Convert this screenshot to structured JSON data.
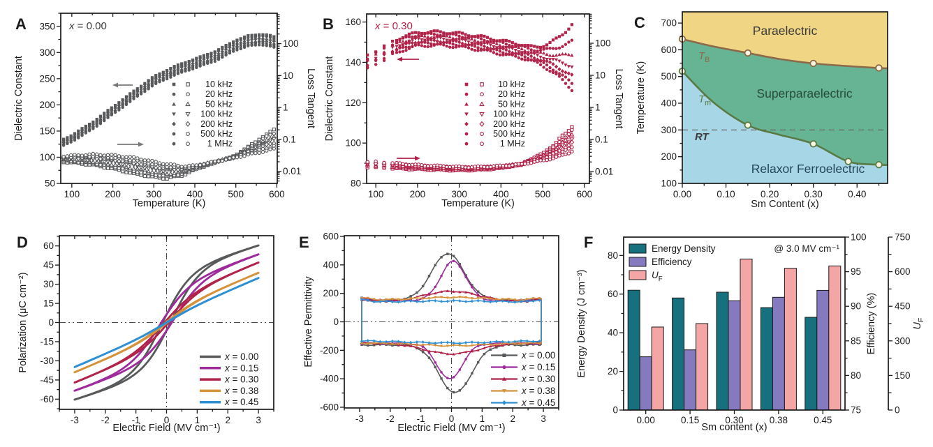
{
  "figure_title": "Dielectric, phase-diagram, polarization and energy-storage panels",
  "colors": {
    "axis": "#1a1a1a",
    "panel_a_gray": "#58595b",
    "panel_b_crimson": "#b12349",
    "purple_x015": "#9e2b9b",
    "orange_x038": "#d4923b",
    "blue_x045": "#2f8fd3",
    "bar_teal": "#16707e",
    "bar_purple": "#8579bf",
    "bar_pink": "#f4a6a6",
    "region_yellow": "#f0d585",
    "region_green": "#66b493",
    "region_blue": "#a7d6e6",
    "tb_brown": "#8c6a49",
    "tm_olive": "#5a7a45"
  },
  "chart_data": [
    {
      "id": "A",
      "type": "scatter",
      "letter": "A",
      "annotation_rich": [
        {
          "t": "x",
          "i": true
        },
        {
          "t": " = 0.00"
        }
      ],
      "color": "#58595b",
      "xlabel": "Temperature (K)",
      "ylabel_left": "Dielectric Constant",
      "ylabel_right": "Loss Tangent",
      "xlim": [
        73,
        601
      ],
      "xticks": [
        100,
        200,
        300,
        400,
        500,
        600
      ],
      "xminor": 50,
      "ylim_left": [
        50,
        375
      ],
      "yticks_left": [
        50,
        100,
        150,
        200,
        250,
        300,
        350
      ],
      "yminor_left": 25,
      "ylim_right": [
        0.0042,
        892
      ],
      "yticks_right": [
        0.01,
        0.1,
        1,
        10,
        100
      ],
      "legend": [
        "10 kHz",
        "20 kHz",
        "50 kHz",
        "100 kHz",
        "200 kHz",
        "500 kHz",
        "1 MHz"
      ],
      "symbols": [
        "square",
        "circle",
        "triangle-up",
        "triangle-down",
        "diamond",
        "circle",
        "circle"
      ],
      "dielectric_mid": {
        "T": [
          80,
          100,
          150,
          200,
          250,
          300,
          350,
          400,
          450,
          500,
          530,
          560,
          580,
          600
        ],
        "K": [
          128,
          136,
          160,
          189,
          218,
          246,
          265,
          279,
          293,
          314,
          322,
          325,
          323,
          318
        ]
      },
      "spread": {
        "low": 2.0,
        "high": 3.4
      },
      "loss_10kHz": {
        "T": [
          80,
          150,
          200,
          250,
          300,
          330,
          370,
          400,
          450,
          500,
          550,
          600
        ],
        "tan": [
          0.02,
          0.016,
          0.012,
          0.0085,
          0.0066,
          0.006,
          0.0075,
          0.011,
          0.019,
          0.03,
          0.08,
          0.215
        ]
      },
      "loss_1MHz": {
        "T": [
          80,
          150,
          200,
          250,
          300,
          330,
          370,
          400,
          450,
          500,
          550,
          600
        ],
        "tan": [
          0.03,
          0.034,
          0.032,
          0.027,
          0.02,
          0.017,
          0.0145,
          0.015,
          0.02,
          0.027,
          0.037,
          0.052
        ]
      }
    },
    {
      "id": "B",
      "type": "scatter",
      "letter": "B",
      "annotation_rich": [
        {
          "t": "x",
          "i": true
        },
        {
          "t": " = 0.30"
        }
      ],
      "color": "#b12349",
      "xlabel": "Temperature (K)",
      "ylabel_left": "Dielectric Constant",
      "ylabel_right": "Loss Tangent",
      "xlim": [
        78,
        612
      ],
      "xticks": [
        100,
        200,
        300,
        400,
        500,
        600
      ],
      "xminor": 50,
      "ylim_left": [
        80,
        164
      ],
      "yticks_left": [
        80,
        100,
        120,
        140,
        160
      ],
      "yminor_left": 10,
      "ylim_right": [
        0.0043,
        818
      ],
      "yticks_right": [
        0.01,
        0.1,
        1,
        10,
        100
      ],
      "legend": [
        "10 kHz",
        "20 kHz",
        "50 kHz",
        "100 kHz",
        "200 kHz",
        "500 kHz",
        "1 MHz"
      ],
      "symbols": [
        "square",
        "circle",
        "triangle-up",
        "triangle-down",
        "diamond",
        "circle",
        "circle"
      ],
      "dielectric_mid": {
        "T": [
          80,
          100,
          120,
          140,
          160,
          200,
          250,
          300,
          350,
          400,
          450,
          500,
          530,
          560,
          575
        ],
        "K": [
          140,
          142.5,
          144.5,
          147,
          149,
          151.5,
          151.8,
          151,
          149.5,
          147.5,
          145.5,
          142.5,
          140.5,
          138,
          136.8
        ]
      },
      "spread": {
        "low": 1.1,
        "high": 1.1
      },
      "divergence": {
        "start": 460,
        "span": 115,
        "amp": [
          20,
          12,
          6,
          1,
          -3,
          -6,
          -8
        ]
      },
      "sparse_T": [
        80,
        100,
        120,
        140
      ],
      "dense_from": 150,
      "loss_10kHz": {
        "T": [
          80,
          150,
          200,
          250,
          300,
          350,
          400,
          450,
          500,
          530,
          560,
          575
        ],
        "tan": [
          0.014,
          0.0125,
          0.012,
          0.0115,
          0.011,
          0.0115,
          0.013,
          0.017,
          0.035,
          0.07,
          0.17,
          0.3
        ]
      },
      "loss_1MHz": {
        "T": [
          80,
          150,
          200,
          250,
          300,
          350,
          400,
          450,
          500,
          530,
          560,
          575
        ],
        "tan": [
          0.021,
          0.018,
          0.016,
          0.015,
          0.014,
          0.014,
          0.015,
          0.017,
          0.022,
          0.027,
          0.037,
          0.047
        ]
      }
    },
    {
      "id": "C",
      "type": "phase-diagram",
      "letter": "C",
      "xlabel": "Sm Content (x)",
      "ylabel": "Temperature (K)",
      "xlim": [
        0,
        0.47
      ],
      "ylim": [
        100,
        742
      ],
      "xticks": [
        0,
        0.1,
        0.2,
        0.3,
        0.4
      ],
      "xminor": 0.05,
      "yticks": [
        100,
        200,
        300,
        400,
        500,
        600,
        700
      ],
      "yminor": 50,
      "regions": [
        {
          "name": "Paraelectric",
          "color": "#f0d585"
        },
        {
          "name": "Superparaelectric",
          "color": "#66b493"
        },
        {
          "name": "Relaxor Ferroelectric",
          "color": "#a7d6e6"
        }
      ],
      "TB": {
        "label_rich": [
          {
            "t": "T",
            "i": true
          },
          {
            "t": "B",
            "sub": true
          }
        ],
        "color": "#8c6a49",
        "x": [
          0,
          0.15,
          0.3,
          0.45
        ],
        "T": [
          640,
          588,
          549,
          532
        ],
        "shape_x": [
          0,
          0.07,
          0.15,
          0.22,
          0.3,
          0.38,
          0.45,
          0.47
        ],
        "shape_T": [
          640,
          613,
          588,
          566,
          549,
          539,
          532,
          531
        ]
      },
      "Tm": {
        "label_rich": [
          {
            "t": "T",
            "i": true
          },
          {
            "t": "m",
            "sub": true
          }
        ],
        "color": "#5a7a45",
        "x": [
          0,
          0.15,
          0.3,
          0.38,
          0.45
        ],
        "T": [
          520,
          318,
          248,
          182,
          170
        ],
        "shape_x": [
          0,
          0.07,
          0.15,
          0.22,
          0.3,
          0.38,
          0.45,
          0.47
        ],
        "shape_T": [
          520,
          405,
          318,
          283,
          248,
          182,
          170,
          169
        ]
      },
      "rt": {
        "T": 300,
        "label": "RT"
      },
      "marker_fill": "#fcf7e3"
    },
    {
      "id": "D",
      "type": "line",
      "letter": "D",
      "xlabel": "Electric Field (MV cm⁻¹)",
      "ylabel": "Polarization (μC cm⁻²)",
      "xlim": [
        -3.5,
        3.5
      ],
      "xticks": [
        -3,
        -2,
        -1,
        0,
        1,
        2,
        3
      ],
      "xminor": 0.5,
      "ylim": [
        -68,
        68
      ],
      "yticks": [
        -60,
        -45,
        -30,
        -15,
        0,
        15,
        30,
        45,
        60
      ],
      "yminor": 7.5,
      "series": [
        {
          "label_rich": [
            {
              "t": "x",
              "i": true
            },
            {
              "t": " = 0.00"
            }
          ],
          "color": "#58595b",
          "pmax": 60,
          "tanh_amp": 38,
          "tanh_k": 1.1,
          "linear": 7.5,
          "ec": 0.15
        },
        {
          "label_rich": [
            {
              "t": "x",
              "i": true
            },
            {
              "t": " = 0.15"
            }
          ],
          "color": "#9e2b9b",
          "pmax": 54,
          "tanh_amp": 28,
          "tanh_k": 1.05,
          "linear": 8.5,
          "ec": 0.22
        },
        {
          "label_rich": [
            {
              "t": "x",
              "i": true
            },
            {
              "t": " = 0.30"
            }
          ],
          "color": "#b12349",
          "pmax": 47,
          "tanh_amp": 18,
          "tanh_k": 1.0,
          "linear": 9.7,
          "ec": 0.1
        },
        {
          "label_rich": [
            {
              "t": "x",
              "i": true
            },
            {
              "t": " = 0.38"
            }
          ],
          "color": "#d4923b",
          "pmax": 39,
          "tanh_amp": 9,
          "tanh_k": 1.0,
          "linear": 10.0,
          "ec": 0.06
        },
        {
          "label_rich": [
            {
              "t": "x",
              "i": true
            },
            {
              "t": " = 0.45"
            }
          ],
          "color": "#2f8fd3",
          "pmax": 35,
          "tanh_amp": 4,
          "tanh_k": 1.0,
          "linear": 10.3,
          "ec": 0.04
        }
      ]
    },
    {
      "id": "E",
      "type": "butterfly",
      "letter": "E",
      "xlabel": "Electric Field (MV cm⁻¹)",
      "ylabel": "Effective Permittivity",
      "xlim": [
        -3.5,
        3.5
      ],
      "xticks": [
        -3,
        -2,
        -1,
        0,
        1,
        2,
        3
      ],
      "xminor": 0.5,
      "ylim": [
        -605,
        605
      ],
      "yticks": [
        -600,
        -400,
        -200,
        0,
        200,
        400,
        600
      ],
      "yminor": 100,
      "emax": 2.93,
      "series": [
        {
          "label_rich": [
            {
              "t": "x",
              "i": true
            },
            {
              "t": " = 0.00"
            }
          ],
          "color": "#58595b",
          "symbol": "square",
          "base_up": 152,
          "base_down": -162,
          "peak_up": 480,
          "peak_down": -498,
          "sigma": 0.75,
          "mu": -0.12
        },
        {
          "label_rich": [
            {
              "t": "x",
              "i": true
            },
            {
              "t": " = 0.15"
            }
          ],
          "color": "#9e2b9b",
          "symbol": "circle",
          "base_up": 150,
          "base_down": -152,
          "peak_up": 425,
          "peak_down": -402,
          "sigma": 0.58,
          "mu": 0.06
        },
        {
          "label_rich": [
            {
              "t": "x",
              "i": true
            },
            {
              "t": " = 0.30"
            }
          ],
          "color": "#b12349",
          "symbol": "triangle-up",
          "base_up": 142,
          "base_down": -148,
          "peak_up": 215,
          "peak_down": -225,
          "sigma": 1.25,
          "mu": 0
        },
        {
          "label_rich": [
            {
              "t": "x",
              "i": true
            },
            {
              "t": " = 0.38"
            }
          ],
          "color": "#d4923b",
          "symbol": "triangle-down",
          "base_up": 153,
          "base_down": -150,
          "peak_up": 172,
          "peak_down": -168,
          "sigma": 1.5,
          "mu": 0
        },
        {
          "label_rich": [
            {
              "t": "x",
              "i": true
            },
            {
              "t": " = 0.45"
            }
          ],
          "color": "#2f8fd3",
          "symbol": "diamond",
          "base_up": 139,
          "base_down": -133,
          "peak_up": 146,
          "peak_down": -148,
          "sigma": 2.0,
          "mu": 0
        }
      ]
    },
    {
      "id": "F",
      "type": "bar",
      "letter": "F",
      "categories": [
        "0.00",
        "0.15",
        "0.30",
        "0.38",
        "0.45"
      ],
      "xlabel": "Sm content (x)",
      "annotation": "@ 3.0 MV cm⁻¹",
      "series": [
        {
          "name": "Energy Density",
          "color": "#16707e",
          "axis": "left",
          "values": [
            62,
            58,
            61,
            53,
            48
          ]
        },
        {
          "name": "Efficiency",
          "color": "#8579bf",
          "axis": "eff",
          "values": [
            82.7,
            83.7,
            90.8,
            91.3,
            92.3
          ]
        },
        {
          "name": "UF",
          "name_rich": [
            {
              "t": "U",
              "i": true
            },
            {
              "t": "F",
              "sub": true
            }
          ],
          "color": "#f4a6a6",
          "axis": "uf",
          "values": [
            360,
            375,
            655,
            615,
            625
          ]
        }
      ],
      "left_axis": {
        "label": "Energy Density (J cm⁻³)",
        "lim": [
          0,
          89.5
        ],
        "ticks": [
          0,
          20,
          40,
          60,
          80
        ],
        "minor": 10
      },
      "eff_axis": {
        "label": "Efficiency (%)",
        "lim": [
          75,
          100
        ],
        "ticks": [
          75,
          80,
          85,
          90,
          95,
          100
        ],
        "minor": 2.5
      },
      "uf_axis": {
        "label_rich": [
          {
            "t": "U",
            "i": true
          },
          {
            "t": "F",
            "sub": true
          }
        ],
        "lim": [
          0,
          750
        ],
        "ticks": [
          0,
          150,
          300,
          450,
          600,
          750
        ],
        "minor": 75
      }
    }
  ]
}
